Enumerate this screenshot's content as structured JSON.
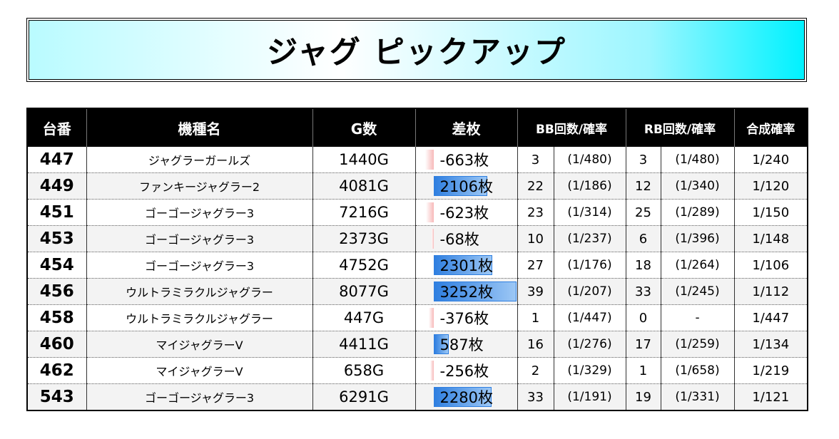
{
  "banner": {
    "title": "ジャグ ピックアップ"
  },
  "columns": {
    "machine_no": "台番",
    "model": "機種名",
    "games": "G数",
    "diff": "差枚",
    "bb": "BB回数/確率",
    "rb": "RB回数/確率",
    "combined": "合成確率"
  },
  "diff_scale_max": 3252,
  "rows": [
    {
      "no": "447",
      "model": "ジャグラーガールズ",
      "games": "1440G",
      "diff": "-663枚",
      "diff_value": -663,
      "bb": "3",
      "bb_rate": "(1/480)",
      "rb": "3",
      "rb_rate": "(1/480)",
      "combined": "1/240"
    },
    {
      "no": "449",
      "model": "ファンキージャグラー2",
      "games": "4081G",
      "diff": "2106枚",
      "diff_value": 2106,
      "bb": "22",
      "bb_rate": "(1/186)",
      "rb": "12",
      "rb_rate": "(1/340)",
      "combined": "1/120"
    },
    {
      "no": "451",
      "model": "ゴーゴージャグラー3",
      "games": "7216G",
      "diff": "-623枚",
      "diff_value": -623,
      "bb": "23",
      "bb_rate": "(1/314)",
      "rb": "25",
      "rb_rate": "(1/289)",
      "combined": "1/150"
    },
    {
      "no": "453",
      "model": "ゴーゴージャグラー3",
      "games": "2373G",
      "diff": "-68枚",
      "diff_value": -68,
      "bb": "10",
      "bb_rate": "(1/237)",
      "rb": "6",
      "rb_rate": "(1/396)",
      "combined": "1/148"
    },
    {
      "no": "454",
      "model": "ゴーゴージャグラー3",
      "games": "4752G",
      "diff": "2301枚",
      "diff_value": 2301,
      "bb": "27",
      "bb_rate": "(1/176)",
      "rb": "18",
      "rb_rate": "(1/264)",
      "combined": "1/106"
    },
    {
      "no": "456",
      "model": "ウルトラミラクルジャグラー",
      "games": "8077G",
      "diff": "3252枚",
      "diff_value": 3252,
      "bb": "39",
      "bb_rate": "(1/207)",
      "rb": "33",
      "rb_rate": "(1/245)",
      "combined": "1/112"
    },
    {
      "no": "458",
      "model": "ウルトラミラクルジャグラー",
      "games": "447G",
      "diff": "-376枚",
      "diff_value": -376,
      "bb": "1",
      "bb_rate": "(1/447)",
      "rb": "0",
      "rb_rate": "-",
      "combined": "1/447"
    },
    {
      "no": "460",
      "model": "マイジャグラーV",
      "games": "4411G",
      "diff": "587枚",
      "diff_value": 587,
      "bb": "16",
      "bb_rate": "(1/276)",
      "rb": "17",
      "rb_rate": "(1/259)",
      "combined": "1/134"
    },
    {
      "no": "462",
      "model": "マイジャグラーV",
      "games": "658G",
      "diff": "-256枚",
      "diff_value": -256,
      "bb": "2",
      "bb_rate": "(1/329)",
      "rb": "1",
      "rb_rate": "(1/658)",
      "combined": "1/219"
    },
    {
      "no": "543",
      "model": "ゴーゴージャグラー3",
      "games": "6291G",
      "diff": "2280枚",
      "diff_value": 2280,
      "bb": "33",
      "bb_rate": "(1/191)",
      "rb": "19",
      "rb_rate": "(1/331)",
      "combined": "1/121"
    }
  ]
}
